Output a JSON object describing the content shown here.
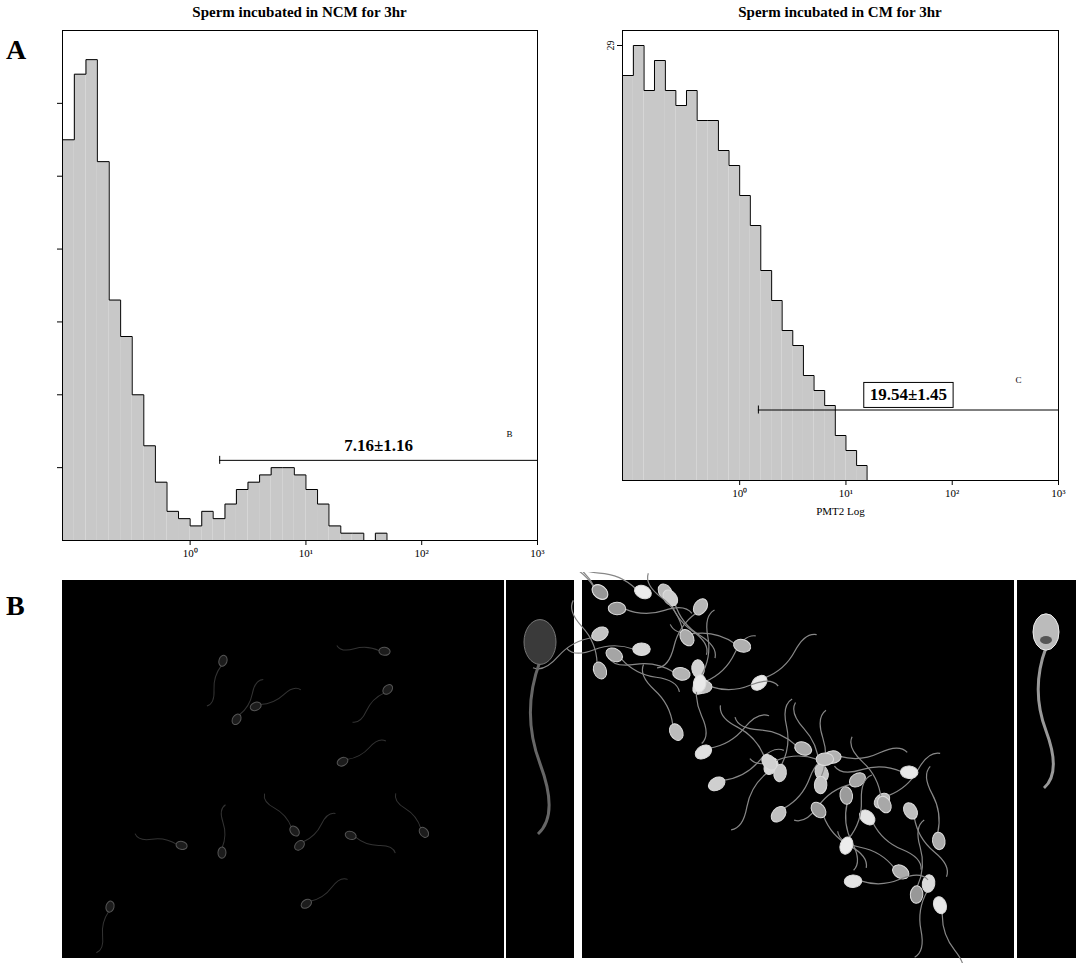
{
  "panel_labels": [
    "A",
    "B"
  ],
  "chart_data": [
    {
      "type": "histogram",
      "title": "Sperm incubated in NCM for 3hr",
      "color": "#c8c8c8",
      "log": "x",
      "tick_labels": "x",
      "bins": [
        0.079,
        0.1,
        0.126,
        0.158,
        0.2,
        0.251,
        0.316,
        0.398,
        0.501,
        0.631,
        0.794,
        1,
        1.26,
        1.58,
        2,
        2.51,
        3.16,
        3.98,
        5.01,
        6.31,
        7.94,
        10,
        12.6,
        15.8,
        20,
        25.1,
        31.6,
        39.8,
        50.1,
        63.1,
        79.4,
        100
      ],
      "values": [
        55,
        64,
        66,
        52,
        33,
        28,
        20,
        13,
        8,
        4,
        3,
        2,
        4,
        3,
        5,
        7,
        8,
        9,
        10,
        10,
        9,
        7,
        5,
        2,
        1,
        1,
        0,
        1,
        0,
        0,
        0
      ],
      "xlim": [
        0.079,
        1000
      ],
      "xticks": [
        {
          "value": 1,
          "label": "10⁰"
        },
        {
          "value": 10,
          "label": "10¹"
        },
        {
          "value": 100,
          "label": "10²"
        },
        {
          "value": 1000,
          "label": "10³"
        }
      ],
      "ylim": [
        0,
        70
      ],
      "yticks": [
        10,
        20,
        30,
        40,
        50,
        60
      ],
      "gate": {
        "x": [
          1.8,
          1000
        ],
        "y": 11,
        "label": "7.16±1.16",
        "name": "B"
      }
    },
    {
      "type": "histogram",
      "title": "Sperm incubated in CM for 3hr",
      "xlabel": "PMT2 Log",
      "color": "#c8c8c8",
      "log": "x",
      "bins": [
        0.079,
        0.1,
        0.126,
        0.158,
        0.2,
        0.251,
        0.316,
        0.398,
        0.501,
        0.631,
        0.794,
        1,
        1.26,
        1.58,
        2,
        2.51,
        3.16,
        3.98,
        5.01,
        6.31,
        7.94,
        10,
        12.6,
        15.8,
        20,
        25.1,
        31.6,
        39.8,
        50.1,
        63.1,
        79.4,
        100
      ],
      "values": [
        27,
        29,
        26,
        28,
        26,
        25,
        26,
        24,
        24,
        22,
        21,
        19,
        17,
        14,
        12,
        10,
        9,
        7,
        6,
        5,
        3,
        2,
        1,
        0,
        0,
        0,
        0,
        0,
        0,
        0,
        0
      ],
      "xlim": [
        0.079,
        1000
      ],
      "xticks": [
        {
          "value": 1,
          "label": "10⁰"
        },
        {
          "value": 10,
          "label": "10¹"
        },
        {
          "value": 100,
          "label": "10²"
        },
        {
          "value": 1000,
          "label": "10³"
        }
      ],
      "ylim": [
        0,
        30
      ],
      "yticks": [
        29
      ],
      "gate": {
        "x": [
          1.5,
          1000
        ],
        "y": 4.7,
        "label": "19.54±1.45",
        "name": "C"
      }
    }
  ]
}
